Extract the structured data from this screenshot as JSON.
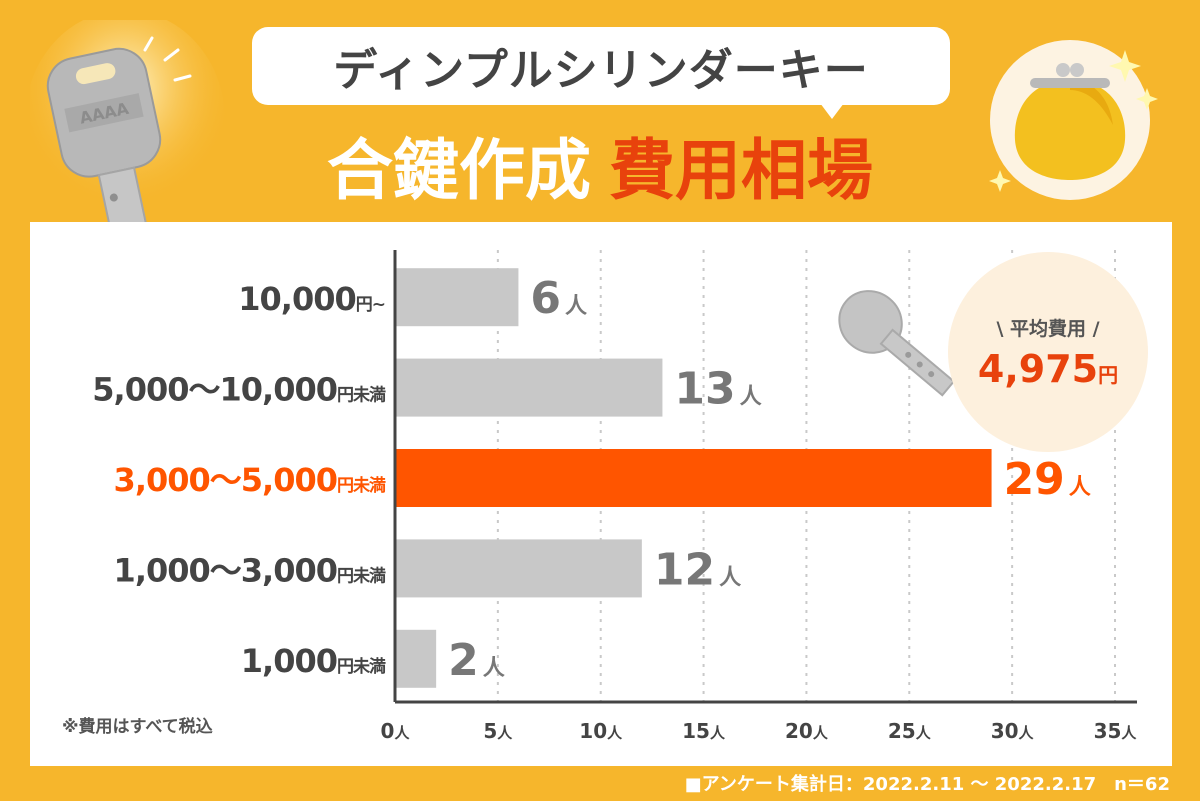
{
  "header": {
    "line1": "ディンプルシリンダーキー",
    "line2_white": "合鍵作成",
    "line2_red": "費用相場"
  },
  "average": {
    "label": "\\ 平均費用 /",
    "value": "4,975",
    "unit": "円"
  },
  "note": "※費用はすべて税込",
  "footer": "■アンケート集計日：2022.2.11 〜 2022.2.17　n＝62",
  "colors": {
    "background": "#f6b62c",
    "bar_default": "#c8c8c8",
    "bar_highlight": "#ff5500",
    "label_default": "#444444",
    "label_highlight": "#ff5500",
    "value_default": "#777777"
  },
  "chart_data": {
    "type": "bar",
    "orientation": "horizontal",
    "categories": [
      {
        "amount": "10,000",
        "suffix": "円~"
      },
      {
        "amount": "5,000〜10,000",
        "suffix": "円未満"
      },
      {
        "amount": "3,000〜5,000",
        "suffix": "円未満"
      },
      {
        "amount": "1,000〜3,000",
        "suffix": "円未満"
      },
      {
        "amount": "1,000",
        "suffix": "円未満"
      }
    ],
    "values": [
      6,
      13,
      29,
      12,
      2
    ],
    "value_unit": "人",
    "highlight_index": 2,
    "xlim": [
      0,
      35
    ],
    "xticks": [
      0,
      5,
      10,
      15,
      20,
      25,
      30,
      35
    ],
    "tick_unit": "人",
    "grid": true
  }
}
